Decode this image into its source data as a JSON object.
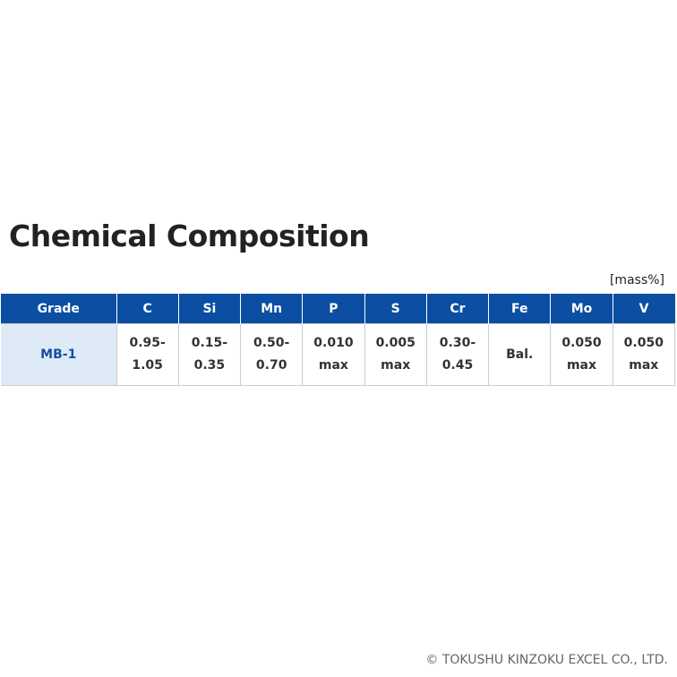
{
  "title": "Chemical Composition",
  "unit": "[mass%]",
  "table": {
    "header": [
      "Grade",
      "C",
      "Si",
      "Mn",
      "P",
      "S",
      "Cr",
      "Fe",
      "Mo",
      "V"
    ],
    "rows": [
      [
        "MB-1",
        "0.95-1.05",
        "0.15-0.35",
        "0.50-0.70",
        "0.010 max",
        "0.005 max",
        "0.30-0.45",
        "Bal.",
        "0.050 max",
        "0.050 max"
      ]
    ]
  },
  "footer": "© TOKUSHU KINZOKU EXCEL CO., LTD."
}
